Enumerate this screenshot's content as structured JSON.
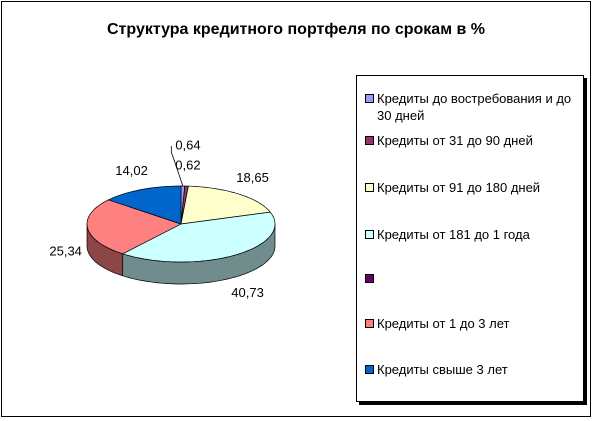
{
  "chart_data": {
    "type": "pie3d",
    "title": "Структура кредитного портфеля по срокам в %",
    "categories": [
      "Кредиты до востребования и до 30 дней",
      "Кредиты от 31 до 90 дней",
      "Кредиты от 91 до 180 дней",
      "Кредиты от 181 до 1 года",
      null,
      "Кредиты от 1 до 3 лет",
      "Кредиты свыше 3 лет"
    ],
    "values": [
      0.64,
      0.62,
      18.65,
      40.73,
      null,
      25.34,
      14.02
    ],
    "value_labels": [
      "0,64",
      "0,62",
      "18,65",
      "40,73",
      null,
      "25,34",
      "14,02"
    ],
    "colors": [
      "#9999ff",
      "#993366",
      "#ffffcc",
      "#ccffff",
      "#660066",
      "#ff8080",
      "#0066cc"
    ],
    "legend": "right"
  }
}
